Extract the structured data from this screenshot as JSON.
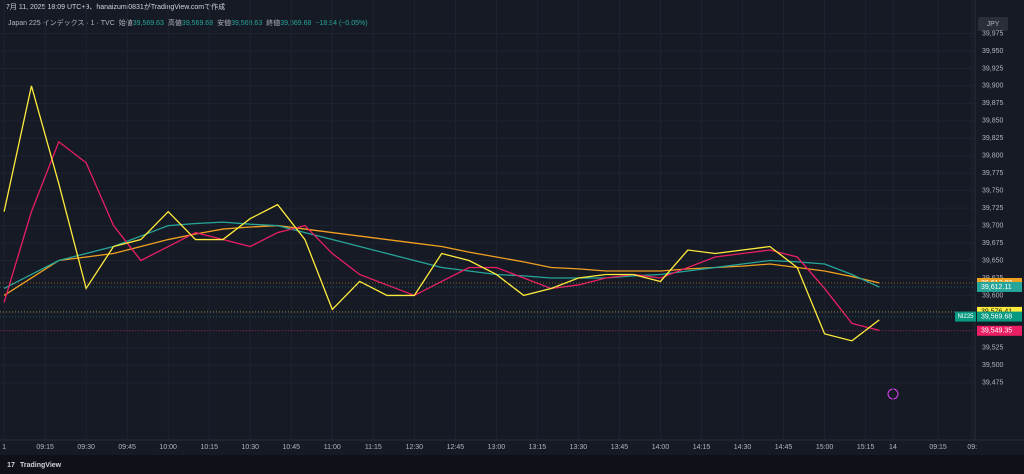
{
  "header": {
    "caption": "7月 11, 2025 18:09 UTC+9、hanaizumi0831がTradingView.comで作成",
    "symbol": "Japan 225 インデックス · 1 · TVC",
    "ohlc": [
      {
        "label": "始値",
        "value": "39,569.63"
      },
      {
        "label": "高値",
        "value": "39,569.68"
      },
      {
        "label": "安値",
        "value": "39,569.63"
      },
      {
        "label": "終値",
        "value": "39,569.68"
      }
    ],
    "change": "−18.94 (−0.05%)",
    "currency": "JPY"
  },
  "footer": {
    "brand": "TradingView"
  },
  "chart_data": {
    "type": "line",
    "grid": true,
    "x": [
      0,
      2,
      4,
      6,
      8,
      10,
      12,
      14,
      16,
      18,
      20,
      22,
      24,
      26,
      28,
      30,
      32,
      34,
      36,
      38,
      40,
      42,
      44,
      46,
      48,
      50,
      52,
      54,
      56,
      58,
      60,
      62,
      64
    ],
    "xlim": [
      -0.3,
      71
    ],
    "xticks": [
      {
        "value": 0,
        "label": "1"
      },
      {
        "value": 3,
        "label": "09:15"
      },
      {
        "value": 6,
        "label": "09:30"
      },
      {
        "value": 9,
        "label": "09:45"
      },
      {
        "value": 12,
        "label": "10:00"
      },
      {
        "value": 15,
        "label": "10:15"
      },
      {
        "value": 18,
        "label": "10:30"
      },
      {
        "value": 21,
        "label": "10:45"
      },
      {
        "value": 24,
        "label": "11:00"
      },
      {
        "value": 27,
        "label": "11:15"
      },
      {
        "value": 30,
        "label": "12:30"
      },
      {
        "value": 33,
        "label": "12:45"
      },
      {
        "value": 36,
        "label": "13:00"
      },
      {
        "value": 39,
        "label": "13:15"
      },
      {
        "value": 42,
        "label": "13:30"
      },
      {
        "value": 45,
        "label": "13:45"
      },
      {
        "value": 48,
        "label": "14:00"
      },
      {
        "value": 51,
        "label": "14:15"
      },
      {
        "value": 54,
        "label": "14:30"
      },
      {
        "value": 57,
        "label": "14:45"
      },
      {
        "value": 60,
        "label": "15:00"
      },
      {
        "value": 63,
        "label": "15:15"
      },
      {
        "value": 65,
        "label": "14"
      },
      {
        "value": 68.3,
        "label": "09:15"
      },
      {
        "value": 70.8,
        "label": "09:"
      }
    ],
    "ylim": [
      39393,
      40023
    ],
    "yticks": [
      {
        "value": 39475,
        "label": "39,475"
      },
      {
        "value": 39500,
        "label": "39,500"
      },
      {
        "value": 39525,
        "label": "39,525"
      },
      {
        "value": 39550,
        "label": "39,550"
      },
      {
        "value": 39575,
        "label": "39,575"
      },
      {
        "value": 39600,
        "label": "39,600"
      },
      {
        "value": 39625,
        "label": "39,625"
      },
      {
        "value": 39650,
        "label": "39,650"
      },
      {
        "value": 39675,
        "label": "39,675"
      },
      {
        "value": 39700,
        "label": "39,700"
      },
      {
        "value": 39725,
        "label": "39,725"
      },
      {
        "value": 39750,
        "label": "39,750"
      },
      {
        "value": 39775,
        "label": "39,775"
      },
      {
        "value": 39800,
        "label": "39,800"
      },
      {
        "value": 39825,
        "label": "39,825"
      },
      {
        "value": 39850,
        "label": "39,850"
      },
      {
        "value": 39875,
        "label": "39,875"
      },
      {
        "value": 39900,
        "label": "39,900"
      },
      {
        "value": 39925,
        "label": "39,925"
      },
      {
        "value": 39950,
        "label": "39,950"
      },
      {
        "value": 39975,
        "label": "39,975"
      }
    ],
    "series": [
      {
        "color": "#f0a020",
        "values": [
          39600,
          39625,
          39650,
          39655,
          39660,
          39670,
          39680,
          39688,
          39695,
          39698,
          39700,
          39695,
          39690,
          39685,
          39680,
          39675,
          39670,
          39662,
          39655,
          39648,
          39640,
          39638,
          39635,
          39635,
          39635,
          39638,
          39640,
          39642,
          39645,
          39640,
          39635,
          39627,
          39618
        ],
        "last_value": 39617.83,
        "last_label": "39,617.83"
      },
      {
        "color": "#26a69a",
        "values": [
          39610,
          39630,
          39650,
          39660,
          39670,
          39685,
          39700,
          39703,
          39705,
          39702,
          39700,
          39690,
          39680,
          39670,
          39660,
          39650,
          39640,
          39635,
          39630,
          39628,
          39625,
          39625,
          39625,
          39628,
          39630,
          39635,
          39640,
          39645,
          39650,
          39648,
          39645,
          39630,
          39612
        ],
        "last_value": 39612.11,
        "last_label": "39,612.11"
      },
      {
        "color": "#e91e63",
        "values": [
          39590,
          39720,
          39820,
          39790,
          39700,
          39650,
          39670,
          39690,
          39680,
          39670,
          39690,
          39700,
          39660,
          39630,
          39615,
          39600,
          39620,
          39640,
          39640,
          39625,
          39610,
          39615,
          39625,
          39630,
          39625,
          39640,
          39655,
          39660,
          39665,
          39655,
          39610,
          39560,
          39550
        ],
        "last_value": 39549.35,
        "last_label": "39,549.35"
      },
      {
        "color": "#ffeb3b",
        "values": [
          39720,
          39900,
          39760,
          39610,
          39670,
          39680,
          39720,
          39680,
          39680,
          39710,
          39730,
          39680,
          39580,
          39620,
          39600,
          39600,
          39660,
          39650,
          39630,
          39600,
          39610,
          39625,
          39630,
          39630,
          39620,
          39665,
          39660,
          39665,
          39670,
          39640,
          39545,
          39535,
          39565
        ],
        "last_value": 39576.41,
        "last_label": "39,576.41"
      }
    ],
    "price_tag": {
      "symbol": "NI225",
      "value": 39569.68,
      "label": "39,569.68",
      "color": "#089981"
    }
  }
}
